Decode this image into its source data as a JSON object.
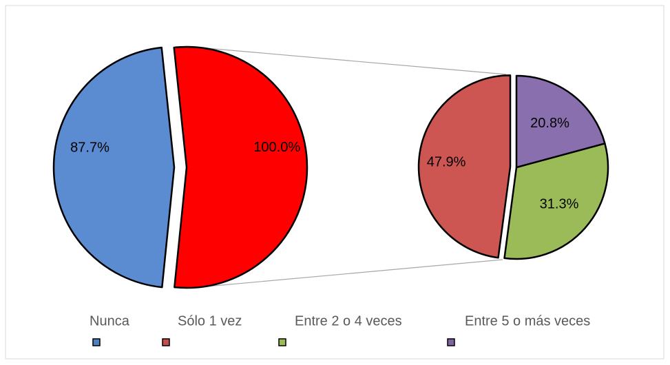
{
  "chart_data": {
    "type": "pie",
    "legend": [
      "Nunca",
      "Sólo 1 vez",
      "Entre 2 o 4 veces",
      "Entre 5 o más veces"
    ],
    "legend_colors": [
      "#4f81bd",
      "#c0504d",
      "#9bbb59",
      "#8064a2"
    ],
    "primary": {
      "values": [
        87.7,
        100.0
      ],
      "value_labels": [
        "87.7%",
        "100.0%"
      ],
      "colors": [
        "#5b8bd0",
        "#ff0000"
      ]
    },
    "secondary": {
      "values": [
        47.9,
        31.3,
        20.8
      ],
      "value_labels": [
        "47.9%",
        "31.3%",
        "20.8%"
      ],
      "colors": [
        "#cd5552",
        "#9bbb59",
        "#8a6fae"
      ]
    }
  }
}
